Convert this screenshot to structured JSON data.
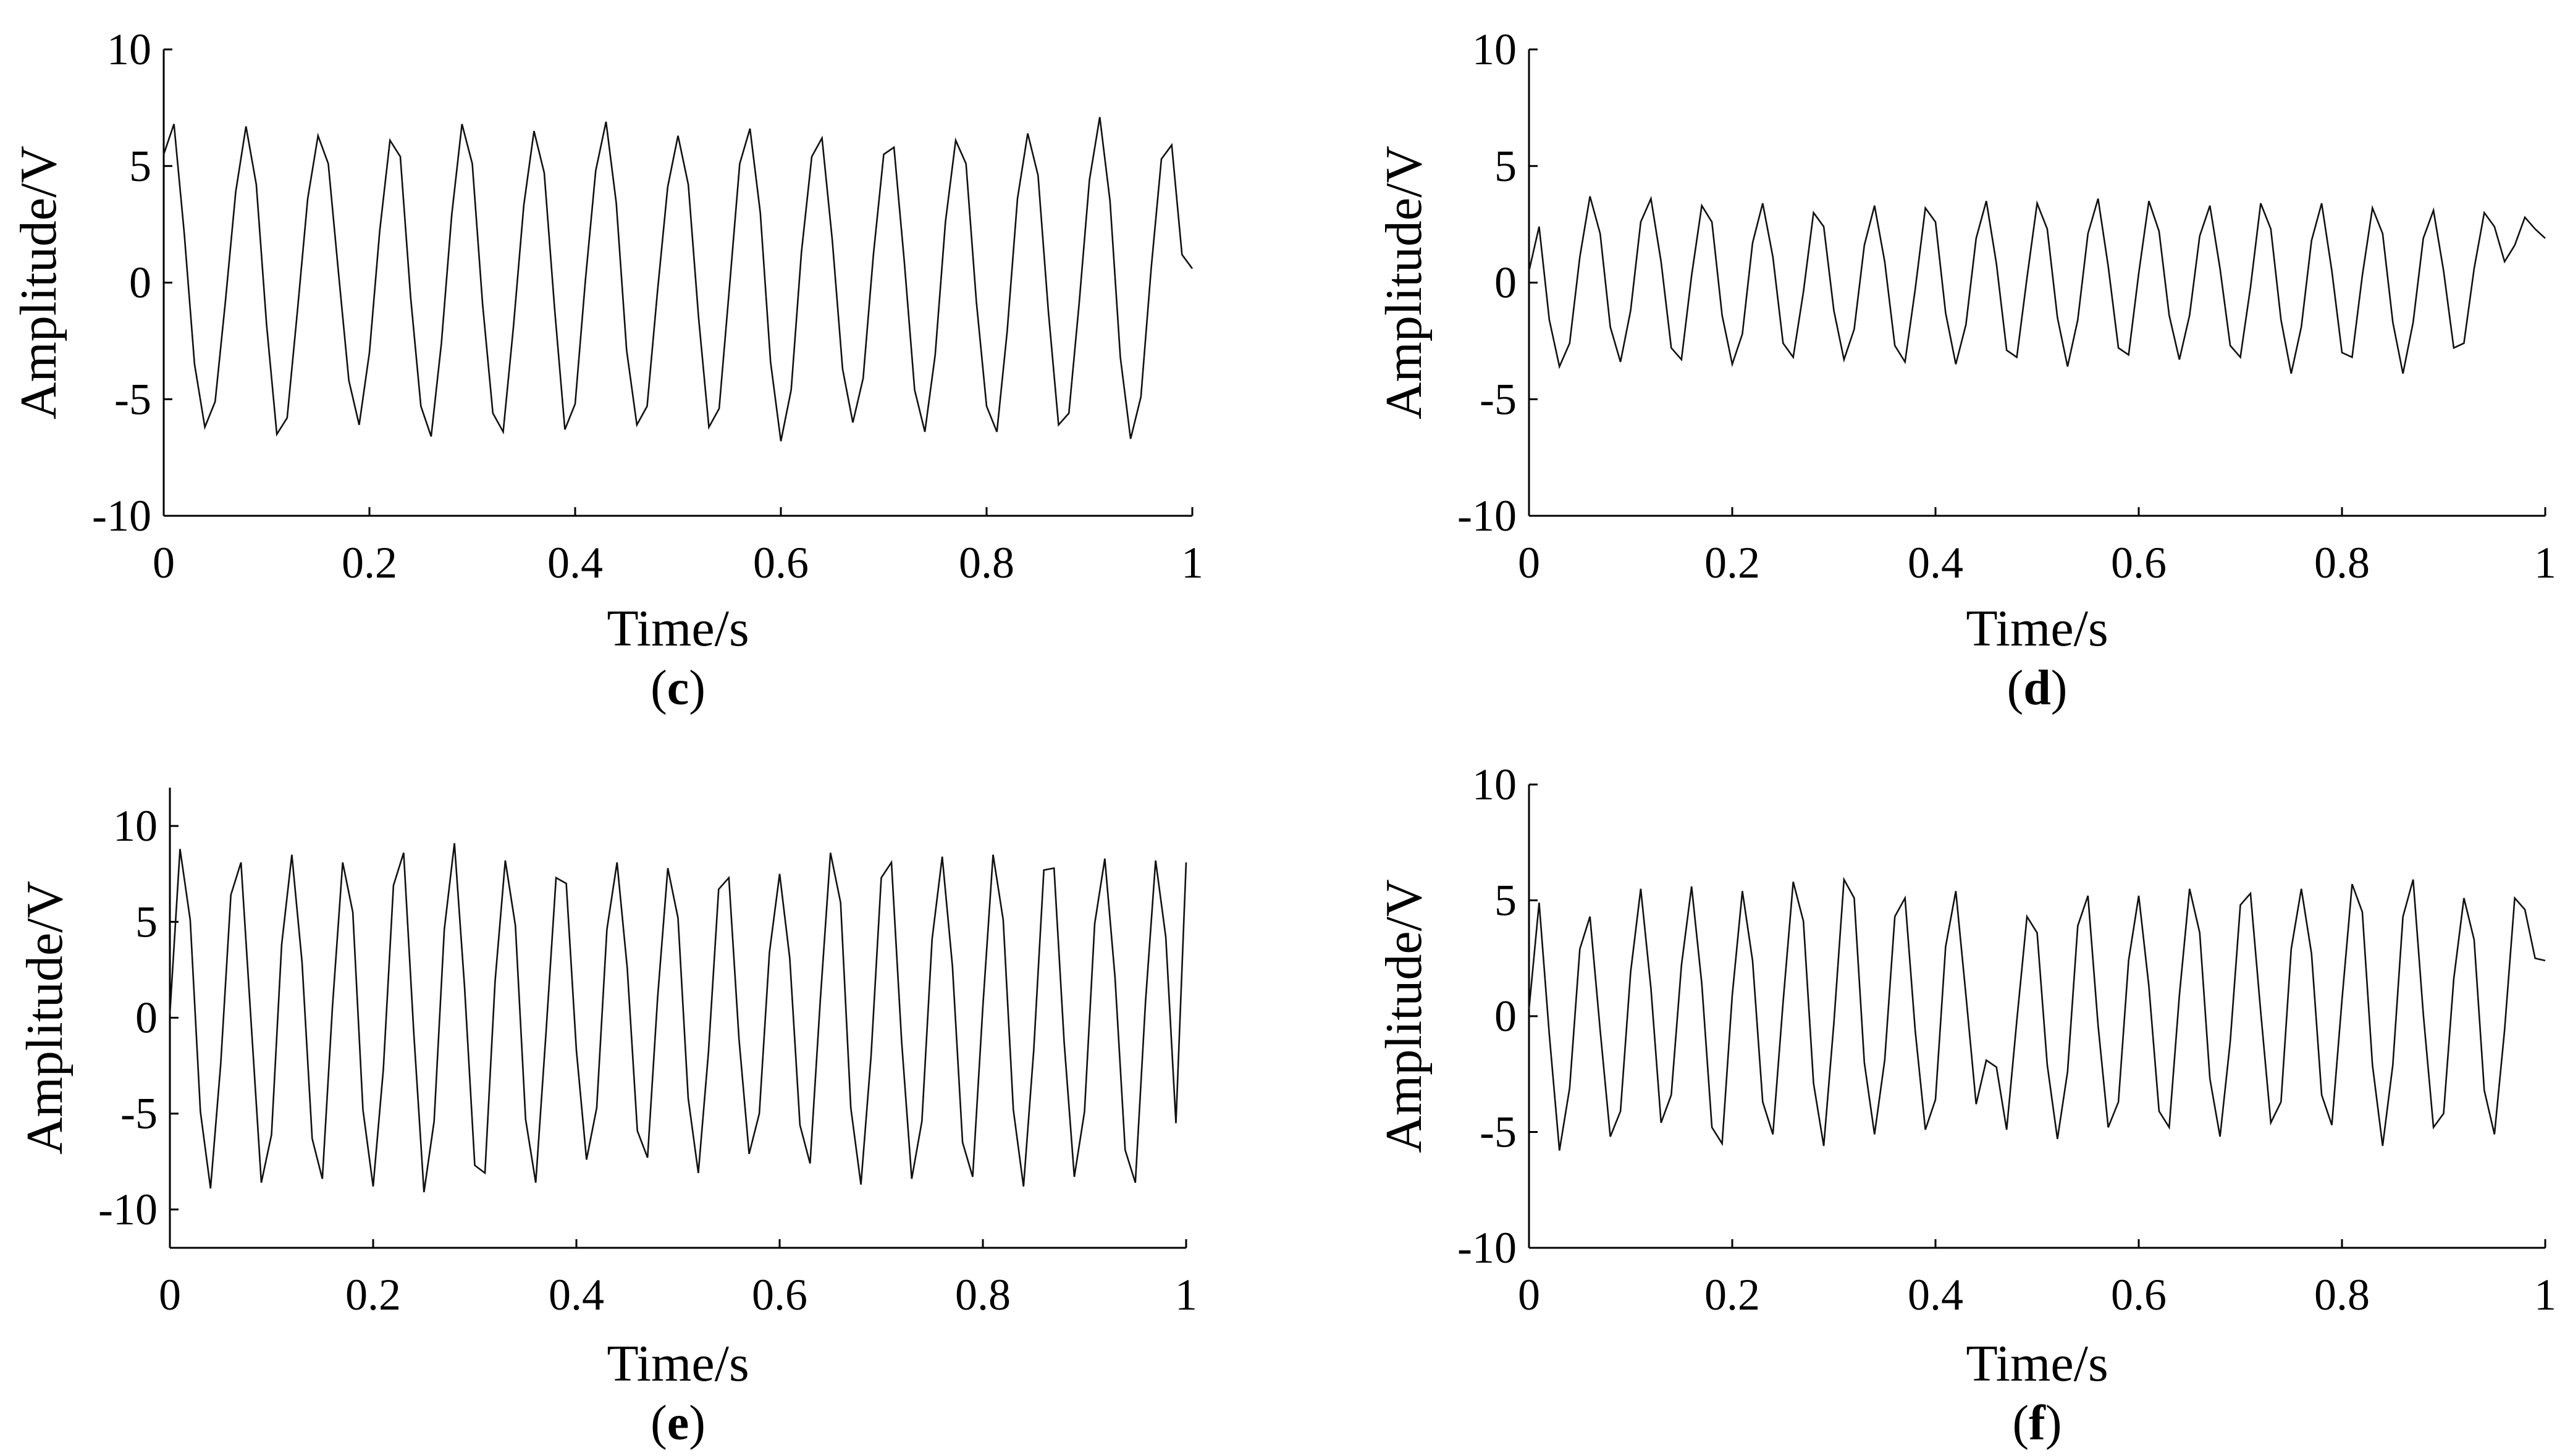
{
  "chart_data": [
    {
      "panel": "(c)",
      "caption_letter": "c",
      "type": "line",
      "xlabel": "Time/s",
      "ylabel": "Amplitude/V",
      "xlim": [
        0,
        1
      ],
      "ylim": [
        -10,
        10
      ],
      "xticks": [
        "0",
        "0.2",
        "0.4",
        "0.6",
        "0.8",
        "1"
      ],
      "yticks": [
        "10",
        "5",
        "0",
        "-5",
        "-10"
      ],
      "series": [
        {
          "x": [
            0,
            0.01,
            0.02,
            0.03,
            0.04,
            0.05,
            0.06,
            0.07,
            0.08,
            0.09,
            0.1,
            0.11,
            0.12,
            0.13,
            0.14,
            0.15,
            0.16,
            0.17,
            0.18,
            0.19,
            0.2,
            0.21,
            0.22,
            0.23,
            0.24,
            0.25,
            0.26,
            0.27,
            0.28,
            0.29,
            0.3,
            0.31,
            0.32,
            0.33,
            0.34,
            0.35,
            0.36,
            0.37,
            0.38,
            0.39,
            0.4,
            0.41,
            0.42,
            0.43,
            0.44,
            0.45,
            0.46,
            0.47,
            0.48,
            0.49,
            0.5,
            0.51,
            0.52,
            0.53,
            0.54,
            0.55,
            0.56,
            0.57,
            0.58,
            0.59,
            0.6,
            0.61,
            0.62,
            0.63,
            0.64,
            0.65,
            0.66,
            0.67,
            0.68,
            0.69,
            0.7,
            0.71,
            0.72,
            0.73,
            0.74,
            0.75,
            0.76,
            0.77,
            0.78,
            0.79,
            0.8,
            0.81,
            0.82,
            0.83,
            0.84,
            0.85,
            0.86,
            0.87,
            0.88,
            0.89,
            0.9,
            0.91,
            0.92,
            0.93,
            0.94,
            0.95,
            0.96,
            0.97,
            0.98,
            0.99,
            1
          ],
          "y": [
            5.5,
            6.8,
            2.1,
            -3.5,
            -6.2,
            -5.1,
            -0.8,
            3.9,
            6.7,
            4.2,
            -1.8,
            -6.5,
            -5.8,
            -1.2,
            3.6,
            6.3,
            5.1,
            0.4,
            -4.2,
            -6.1,
            -3.0,
            2.2,
            6.1,
            5.4,
            -0.6,
            -5.3,
            -6.6,
            -2.6,
            2.9,
            6.8,
            5.1,
            -0.9,
            -5.6,
            -6.4,
            -1.9,
            3.3,
            6.5,
            4.7,
            -1.1,
            -6.3,
            -5.2,
            0.1,
            4.8,
            6.9,
            3.4,
            -2.9,
            -6.1,
            -5.3,
            -0.4,
            4.1,
            6.3,
            4.2,
            -1.5,
            -6.2,
            -5.4,
            -0.2,
            5.1,
            6.6,
            3.0,
            -3.4,
            -6.8,
            -4.6,
            1.3,
            5.4,
            6.2,
            1.8,
            -3.7,
            -6.0,
            -4.1,
            1.2,
            5.5,
            5.8,
            0.9,
            -4.6,
            -6.4,
            -3.1,
            2.6,
            6.1,
            5.1,
            -0.8,
            -5.3,
            -6.4,
            -2.1,
            3.6,
            6.4,
            4.6,
            -1.2,
            -6.1,
            -5.6,
            -0.9,
            4.4,
            7.1,
            3.5,
            -3.2,
            -6.7,
            -4.9,
            0.6,
            5.3,
            5.9,
            1.2,
            0.6
          ]
        }
      ]
    },
    {
      "panel": "(d)",
      "caption_letter": "d",
      "type": "line",
      "xlabel": "Time/s",
      "ylabel": "Amplitude/V",
      "xlim": [
        0,
        1
      ],
      "ylim": [
        -10,
        10
      ],
      "xticks": [
        "0",
        "0.2",
        "0.4",
        "0.6",
        "0.8",
        "1"
      ],
      "yticks": [
        "10",
        "5",
        "0",
        "-5",
        "-10"
      ],
      "series": [
        {
          "x": [
            0,
            0.01,
            0.02,
            0.03,
            0.04,
            0.05,
            0.06,
            0.07,
            0.08,
            0.09,
            0.1,
            0.11,
            0.12,
            0.13,
            0.14,
            0.15,
            0.16,
            0.17,
            0.18,
            0.19,
            0.2,
            0.21,
            0.22,
            0.23,
            0.24,
            0.25,
            0.26,
            0.27,
            0.28,
            0.29,
            0.3,
            0.31,
            0.32,
            0.33,
            0.34,
            0.35,
            0.36,
            0.37,
            0.38,
            0.39,
            0.4,
            0.41,
            0.42,
            0.43,
            0.44,
            0.45,
            0.46,
            0.47,
            0.48,
            0.49,
            0.5,
            0.51,
            0.52,
            0.53,
            0.54,
            0.55,
            0.56,
            0.57,
            0.58,
            0.59,
            0.6,
            0.61,
            0.62,
            0.63,
            0.64,
            0.65,
            0.66,
            0.67,
            0.68,
            0.69,
            0.7,
            0.71,
            0.72,
            0.73,
            0.74,
            0.75,
            0.76,
            0.77,
            0.78,
            0.79,
            0.8,
            0.81,
            0.82,
            0.83,
            0.84,
            0.85,
            0.86,
            0.87,
            0.88,
            0.89,
            0.9,
            0.91,
            0.92,
            0.93,
            0.94,
            0.95,
            0.96,
            0.97,
            0.98,
            0.99,
            1
          ],
          "y": [
            0.5,
            2.4,
            -1.6,
            -3.6,
            -2.6,
            1.1,
            3.7,
            2.1,
            -1.9,
            -3.4,
            -1.2,
            2.6,
            3.6,
            0.9,
            -2.8,
            -3.3,
            0.3,
            3.3,
            2.6,
            -1.4,
            -3.5,
            -2.2,
            1.7,
            3.4,
            1.1,
            -2.6,
            -3.2,
            -0.4,
            3.0,
            2.4,
            -1.2,
            -3.3,
            -2.0,
            1.6,
            3.3,
            0.9,
            -2.7,
            -3.4,
            -0.3,
            3.2,
            2.6,
            -1.3,
            -3.5,
            -1.8,
            1.9,
            3.5,
            0.8,
            -2.9,
            -3.2,
            0.2,
            3.4,
            2.3,
            -1.5,
            -3.6,
            -1.6,
            2.1,
            3.6,
            0.7,
            -2.8,
            -3.1,
            0.4,
            3.5,
            2.2,
            -1.4,
            -3.3,
            -1.4,
            2.0,
            3.3,
            0.6,
            -2.7,
            -3.2,
            -0.2,
            3.4,
            2.3,
            -1.6,
            -3.9,
            -1.9,
            1.8,
            3.4,
            0.5,
            -3.0,
            -3.2,
            0.3,
            3.2,
            2.1,
            -1.7,
            -3.9,
            -1.7,
            1.9,
            3.1,
            0.5,
            -2.8,
            -2.6,
            0.6,
            3.0,
            2.4,
            0.9,
            1.6,
            2.8,
            2.3,
            1.9
          ]
        }
      ]
    },
    {
      "panel": "(e)",
      "caption_letter": "e",
      "type": "line",
      "xlabel": "Time/s",
      "ylabel": "Amplitude/V",
      "xlim": [
        0,
        1
      ],
      "ylim": [
        -12,
        12
      ],
      "xticks": [
        "0",
        "0.2",
        "0.4",
        "0.6",
        "0.8",
        "1"
      ],
      "yticks": [
        "10",
        "5",
        "0",
        "-5",
        "-10"
      ],
      "series": [
        {
          "x": [
            0,
            0.01,
            0.02,
            0.03,
            0.04,
            0.05,
            0.06,
            0.07,
            0.08,
            0.09,
            0.1,
            0.11,
            0.12,
            0.13,
            0.14,
            0.15,
            0.16,
            0.17,
            0.18,
            0.19,
            0.2,
            0.21,
            0.22,
            0.23,
            0.24,
            0.25,
            0.26,
            0.27,
            0.28,
            0.29,
            0.3,
            0.31,
            0.32,
            0.33,
            0.34,
            0.35,
            0.36,
            0.37,
            0.38,
            0.39,
            0.4,
            0.41,
            0.42,
            0.43,
            0.44,
            0.45,
            0.46,
            0.47,
            0.48,
            0.49,
            0.5,
            0.51,
            0.52,
            0.53,
            0.54,
            0.55,
            0.56,
            0.57,
            0.58,
            0.59,
            0.6,
            0.61,
            0.62,
            0.63,
            0.64,
            0.65,
            0.66,
            0.67,
            0.68,
            0.69,
            0.7,
            0.71,
            0.72,
            0.73,
            0.74,
            0.75,
            0.76,
            0.77,
            0.78,
            0.79,
            0.8,
            0.81,
            0.82,
            0.83,
            0.84,
            0.85,
            0.86,
            0.87,
            0.88,
            0.89,
            0.9,
            0.91,
            0.92,
            0.93,
            0.94,
            0.95,
            0.96,
            0.97,
            0.98,
            0.99,
            1
          ],
          "y": [
            0.2,
            8.8,
            5.1,
            -4.9,
            -8.9,
            -2.4,
            6.4,
            8.1,
            -0.3,
            -8.6,
            -6.1,
            3.8,
            8.5,
            2.9,
            -6.3,
            -8.4,
            0.6,
            8.1,
            5.5,
            -4.8,
            -8.8,
            -2.7,
            6.9,
            8.6,
            -0.8,
            -9.1,
            -5.4,
            4.6,
            9.1,
            1.6,
            -7.7,
            -8.1,
            1.9,
            8.2,
            4.8,
            -5.3,
            -8.6,
            -0.9,
            7.3,
            7.0,
            -1.7,
            -7.4,
            -4.7,
            4.6,
            8.1,
            2.6,
            -5.9,
            -7.3,
            1.1,
            7.8,
            5.2,
            -4.2,
            -8.1,
            -1.8,
            6.7,
            7.3,
            -1.1,
            -7.1,
            -5.0,
            3.4,
            7.5,
            3.1,
            -5.6,
            -7.6,
            0.9,
            8.6,
            6.0,
            -4.7,
            -8.7,
            -2.0,
            7.3,
            8.1,
            -1.2,
            -8.4,
            -5.4,
            4.1,
            8.4,
            2.7,
            -6.5,
            -8.3,
            0.6,
            8.5,
            5.1,
            -4.8,
            -8.8,
            -1.7,
            7.7,
            7.8,
            -1.3,
            -8.3,
            -4.9,
            4.9,
            8.3,
            2.1,
            -6.9,
            -8.6,
            0.8,
            8.2,
            4.2,
            -5.5,
            8.1
          ]
        }
      ]
    },
    {
      "panel": "(f)",
      "caption_letter": "f",
      "type": "line",
      "xlabel": "Time/s",
      "ylabel": "Amplitude/V",
      "xlim": [
        0,
        1
      ],
      "ylim": [
        -10,
        10
      ],
      "xticks": [
        "0",
        "0.2",
        "0.4",
        "0.6",
        "0.8",
        "1"
      ],
      "yticks": [
        "10",
        "5",
        "0",
        "-5",
        "-10"
      ],
      "series": [
        {
          "x": [
            0,
            0.01,
            0.02,
            0.03,
            0.04,
            0.05,
            0.06,
            0.07,
            0.08,
            0.09,
            0.1,
            0.11,
            0.12,
            0.13,
            0.14,
            0.15,
            0.16,
            0.17,
            0.18,
            0.19,
            0.2,
            0.21,
            0.22,
            0.23,
            0.24,
            0.25,
            0.26,
            0.27,
            0.28,
            0.29,
            0.3,
            0.31,
            0.32,
            0.33,
            0.34,
            0.35,
            0.36,
            0.37,
            0.38,
            0.39,
            0.4,
            0.41,
            0.42,
            0.43,
            0.44,
            0.45,
            0.46,
            0.47,
            0.48,
            0.49,
            0.5,
            0.51,
            0.52,
            0.53,
            0.54,
            0.55,
            0.56,
            0.57,
            0.58,
            0.59,
            0.6,
            0.61,
            0.62,
            0.63,
            0.64,
            0.65,
            0.66,
            0.67,
            0.68,
            0.69,
            0.7,
            0.71,
            0.72,
            0.73,
            0.74,
            0.75,
            0.76,
            0.77,
            0.78,
            0.79,
            0.8,
            0.81,
            0.82,
            0.83,
            0.84,
            0.85,
            0.86,
            0.87,
            0.88,
            0.89,
            0.9,
            0.91,
            0.92,
            0.93,
            0.94,
            0.95,
            0.96,
            0.97,
            0.98,
            0.99,
            1
          ],
          "y": [
            0.3,
            4.9,
            -0.8,
            -5.8,
            -3.1,
            2.9,
            4.3,
            -0.6,
            -5.2,
            -4.1,
            1.9,
            5.5,
            1.2,
            -4.6,
            -3.4,
            2.2,
            5.6,
            1.4,
            -4.8,
            -5.5,
            0.9,
            5.4,
            2.4,
            -3.7,
            -5.1,
            0.6,
            5.8,
            4.1,
            -2.9,
            -5.6,
            -0.3,
            5.9,
            5.1,
            -2.0,
            -5.1,
            -1.9,
            4.3,
            5.1,
            -0.6,
            -4.9,
            -3.6,
            3.0,
            5.4,
            0.9,
            -3.8,
            -1.9,
            -2.2,
            -4.9,
            -0.2,
            4.3,
            3.6,
            -2.1,
            -5.3,
            -2.4,
            3.9,
            5.2,
            -0.4,
            -4.8,
            -3.7,
            2.4,
            5.2,
            1.3,
            -4.1,
            -4.8,
            0.9,
            5.5,
            3.6,
            -2.7,
            -5.2,
            -1.1,
            4.8,
            5.3,
            0.2,
            -4.6,
            -3.7,
            2.9,
            5.5,
            2.7,
            -3.4,
            -4.7,
            0.7,
            5.7,
            4.5,
            -2.1,
            -5.6,
            -2.1,
            4.3,
            5.9,
            0.1,
            -4.8,
            -4.2,
            1.6,
            5.1,
            3.3,
            -3.2,
            -5.1,
            -0.6,
            5.1,
            4.6,
            2.5,
            2.4
          ]
        }
      ]
    }
  ]
}
